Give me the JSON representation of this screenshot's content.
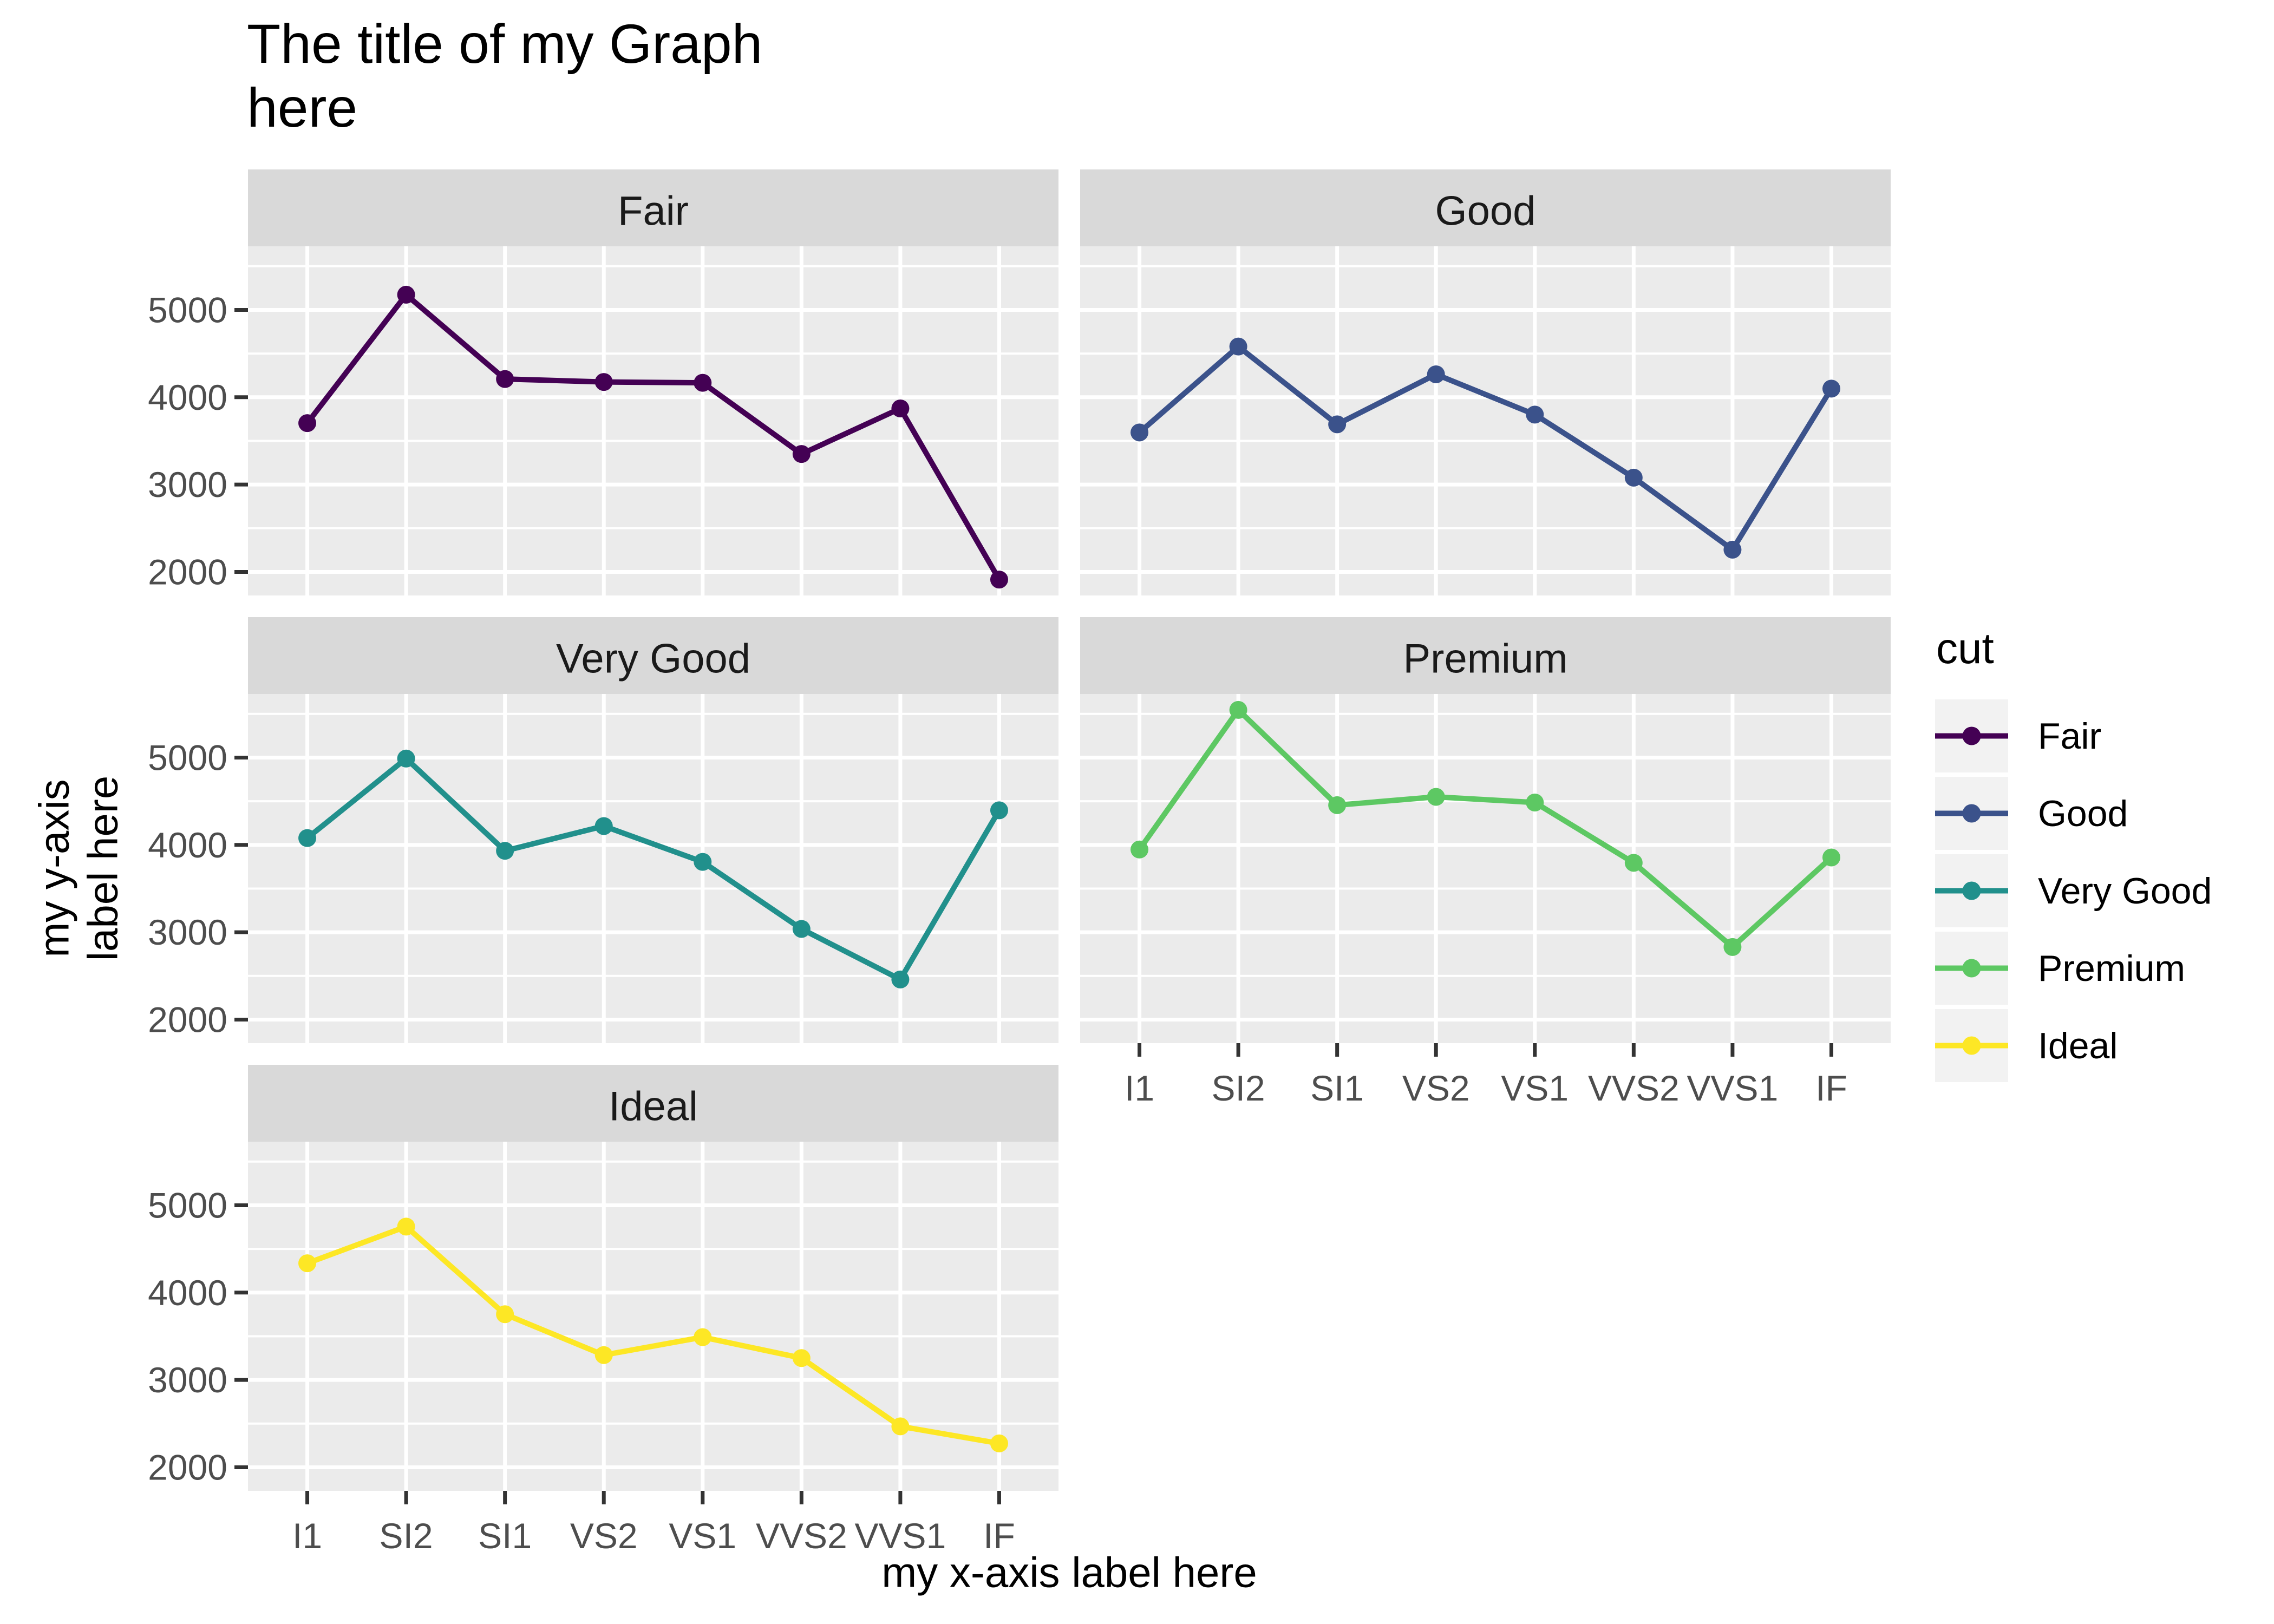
{
  "title": "The title of my Graph\nhere",
  "chart_data": {
    "type": "line",
    "facet_by": "cut",
    "facet_titles": [
      "Fair",
      "Good",
      "Very Good",
      "Premium",
      "Ideal"
    ],
    "x_categories": [
      "I1",
      "SI2",
      "SI1",
      "VS2",
      "VS1",
      "VVS2",
      "VVS1",
      "IF"
    ],
    "xlabel": "my x-axis label here",
    "ylabel": "my y-axis\nlabel here",
    "legend_title": "cut",
    "legend_position": "right",
    "grid": true,
    "y_ticks": [
      5000,
      4000,
      3000,
      2000
    ],
    "y_minor_ticks": [
      5500,
      4500,
      3500,
      2500
    ],
    "ylim": [
      1730,
      5728
    ],
    "series": [
      {
        "name": "Fair",
        "color": "#440154",
        "values": [
          3703.5,
          5173.9,
          4208.3,
          4174.7,
          4165.1,
          3349.8,
          3871.4,
          1912.3
        ]
      },
      {
        "name": "Good",
        "color": "#3B528B",
        "values": [
          3596.6,
          4580.3,
          3689.5,
          4262.2,
          3801.4,
          3079.1,
          2254.8,
          4098.3
        ]
      },
      {
        "name": "Very Good",
        "color": "#21908C",
        "values": [
          4078.2,
          4988.7,
          3932.4,
          4215.8,
          3805.4,
          3037.8,
          2459.4,
          4396.2
        ]
      },
      {
        "name": "Premium",
        "color": "#5DC863",
        "values": [
          3947.3,
          5545.9,
          4455.3,
          4550.3,
          4485.5,
          3795.1,
          2831.2,
          3856.1
        ]
      },
      {
        "name": "Ideal",
        "color": "#FDE725",
        "values": [
          4335.7,
          4755.9,
          3752.1,
          3284.6,
          3489.7,
          3250.3,
          2468.1,
          2272.9
        ]
      }
    ],
    "theme": {
      "panel_bg": "#EBEBEB",
      "strip_bg": "#D9D9D9",
      "strip_text_color": "#1A1A1A",
      "grid_color": "#FFFFFF",
      "tick_color": "#333333",
      "tick_label_color": "#4D4D4D",
      "legend_key_bg": "#F2F2F2"
    }
  }
}
